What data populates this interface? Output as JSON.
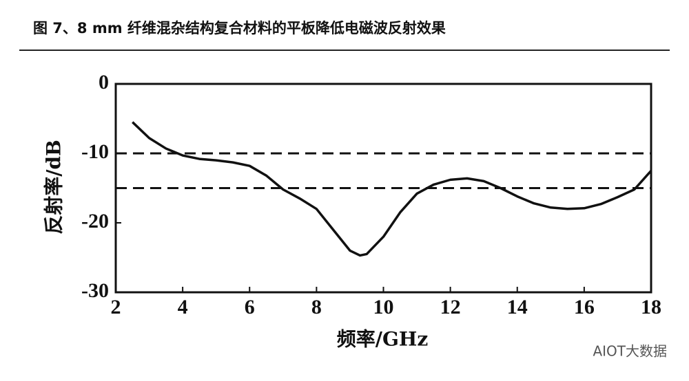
{
  "chart_data": {
    "type": "line",
    "title": "图 7、8 mm 纤维混杂结构复合材料的平板降低电磁波反射效果",
    "x_label": "频率/GHz",
    "y_label": "反射率/dB",
    "watermark": "AIOT大数据",
    "x": [
      2.5,
      3,
      3.5,
      4,
      4.5,
      5,
      5.5,
      6,
      6.5,
      7,
      7.5,
      8,
      8.5,
      9,
      9.3,
      9.5,
      10,
      10.5,
      11,
      11.5,
      12,
      12.5,
      13,
      13.5,
      14,
      14.5,
      15,
      15.5,
      16,
      16.5,
      17,
      17.5,
      18
    ],
    "series": [
      {
        "name": "反射率",
        "color": "#111111",
        "values": [
          -5.5,
          -7.8,
          -9.3,
          -10.3,
          -10.8,
          -11.0,
          -11.3,
          -11.8,
          -13.2,
          -15.2,
          -16.5,
          -18.0,
          -21.0,
          -24.0,
          -24.7,
          -24.5,
          -22.0,
          -18.5,
          -15.8,
          -14.5,
          -13.8,
          -13.6,
          -14.0,
          -15.0,
          -16.2,
          -17.2,
          -17.8,
          -18.0,
          -17.9,
          -17.3,
          -16.3,
          -15.2,
          -12.5
        ]
      }
    ],
    "reference_lines": [
      -10,
      -15
    ],
    "xlim": [
      2,
      18
    ],
    "xticks": [
      2,
      4,
      6,
      8,
      10,
      12,
      14,
      16,
      18
    ],
    "ylim": [
      -30,
      0
    ],
    "yticks": [
      -30,
      -20,
      -10,
      0
    ],
    "grid": false
  }
}
